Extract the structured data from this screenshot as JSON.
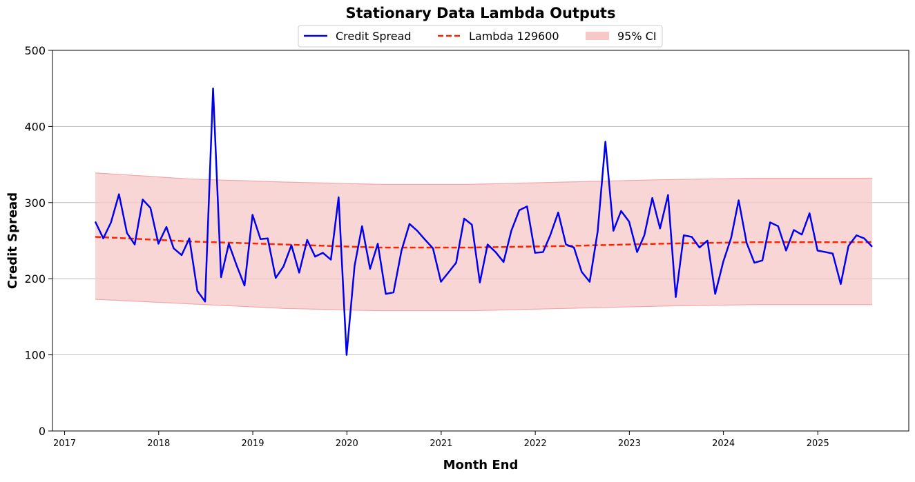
{
  "chart_data": {
    "type": "line",
    "title": "Stationary Data Lambda Outputs",
    "xlabel": "Month End",
    "ylabel": "Credit Spread",
    "ylim": [
      0,
      500
    ],
    "yticks": [
      0,
      100,
      200,
      300,
      400,
      500
    ],
    "xlim": [
      "2016-11-15",
      "2025-12-20"
    ],
    "xticks": [
      "2017",
      "2018",
      "2019",
      "2020",
      "2021",
      "2022",
      "2023",
      "2024",
      "2025"
    ],
    "grid": "y",
    "legend": {
      "placement": "top-center",
      "ncols": 3
    },
    "start_month": "2017-04",
    "series": [
      {
        "name": "Credit Spread",
        "color": "#0000ee",
        "style": "solid",
        "values": [
          275,
          253,
          274,
          311,
          260,
          245,
          304,
          293,
          246,
          268,
          240,
          231,
          253,
          184,
          170,
          450,
          202,
          246,
          217,
          191,
          284,
          252,
          253,
          201,
          216,
          244,
          208,
          251,
          229,
          234,
          225,
          307,
          100,
          217,
          269,
          213,
          246,
          180,
          182,
          237,
          272,
          263,
          251,
          240,
          196,
          209,
          221,
          279,
          271,
          195,
          245,
          235,
          222,
          263,
          290,
          295,
          234,
          235,
          257,
          287,
          245,
          241,
          209,
          196,
          262,
          380,
          263,
          289,
          275,
          235,
          257,
          306,
          266,
          310,
          176,
          257,
          255,
          241,
          250,
          180,
          222,
          254,
          303,
          247,
          221,
          224,
          274,
          269,
          237,
          264,
          258,
          286,
          237,
          235,
          233,
          193,
          243,
          257,
          253,
          242
        ]
      },
      {
        "name": "Lambda 129600",
        "color": "#ff2200",
        "style": "dashed",
        "anchors": {
          "x": [
            0,
            12,
            24,
            36,
            48,
            60,
            72,
            84,
            99
          ],
          "y": [
            255,
            249,
            245,
            241,
            241,
            243,
            246,
            248,
            248
          ]
        }
      },
      {
        "name": "95% CI",
        "color": "#f7c8c8",
        "style": "band",
        "lower": {
          "x": [
            0,
            12,
            24,
            36,
            48,
            60,
            72,
            84,
            99
          ],
          "y": [
            173,
            167,
            161,
            158,
            158,
            161,
            164,
            166,
            166
          ]
        },
        "upper": {
          "x": [
            0,
            12,
            24,
            36,
            48,
            60,
            72,
            84,
            99
          ],
          "y": [
            339,
            331,
            327,
            324,
            324,
            327,
            330,
            332,
            332
          ]
        }
      }
    ]
  }
}
